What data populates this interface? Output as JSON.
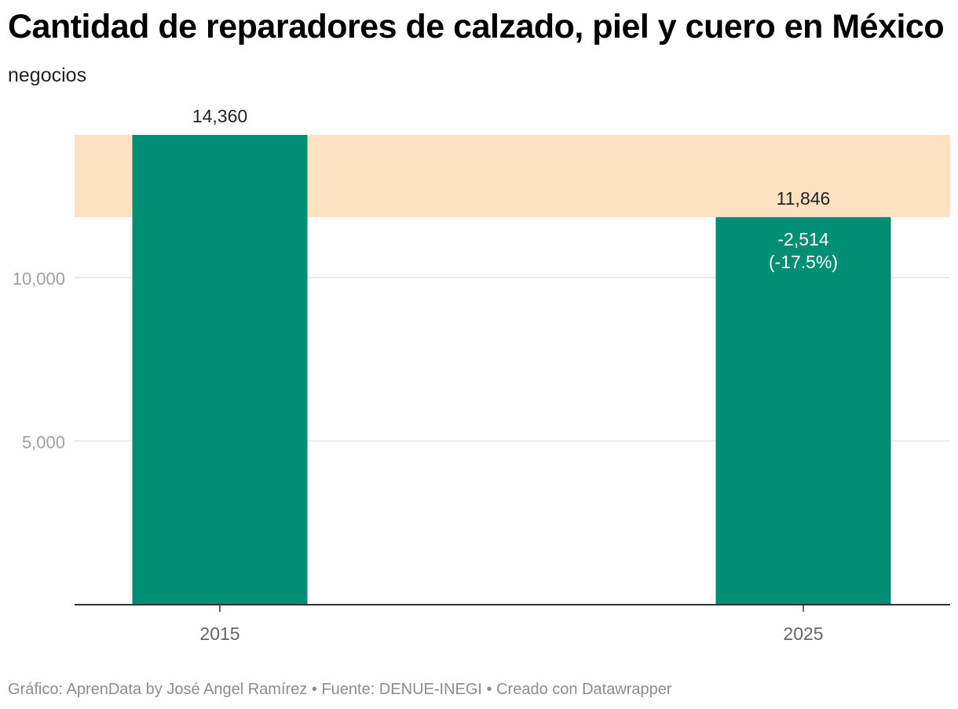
{
  "title": "Cantidad de reparadores de calzado, piel y cuero en México",
  "subtitle": "negocios",
  "chart_data": {
    "type": "bar",
    "title": "Cantidad de reparadores de calzado, piel y cuero en México",
    "ylabel": "negocios",
    "xlabel": "",
    "categories": [
      "2015",
      "2025"
    ],
    "values": [
      14360,
      11846
    ],
    "value_labels": [
      "14,360",
      "11,846"
    ],
    "ylim": [
      0,
      14360
    ],
    "yticks": [
      5000,
      10000
    ],
    "ytick_labels": [
      "5,000",
      "10,000"
    ],
    "grid": true,
    "highlight_band": [
      11846,
      14360
    ],
    "change_label": "-2,514",
    "change_percent_label": "(-17.5%)",
    "colors": {
      "bar": "#008f74",
      "band": "#fde1c0",
      "grid": "#e3e3e3",
      "axis": "#333333",
      "tick_text": "#a0a0a0",
      "label_text": "#222222",
      "inner_text": "#ffffff",
      "x_label_text": "#666666"
    }
  },
  "footer": {
    "credit_prefix": "Gráfico:",
    "credit_name": "AprenData by José Angel Ramírez",
    "separator": "•",
    "source_prefix": "Fuente:",
    "source_name": "DENUE-INEGI",
    "created_with": "Creado con Datawrapper"
  }
}
